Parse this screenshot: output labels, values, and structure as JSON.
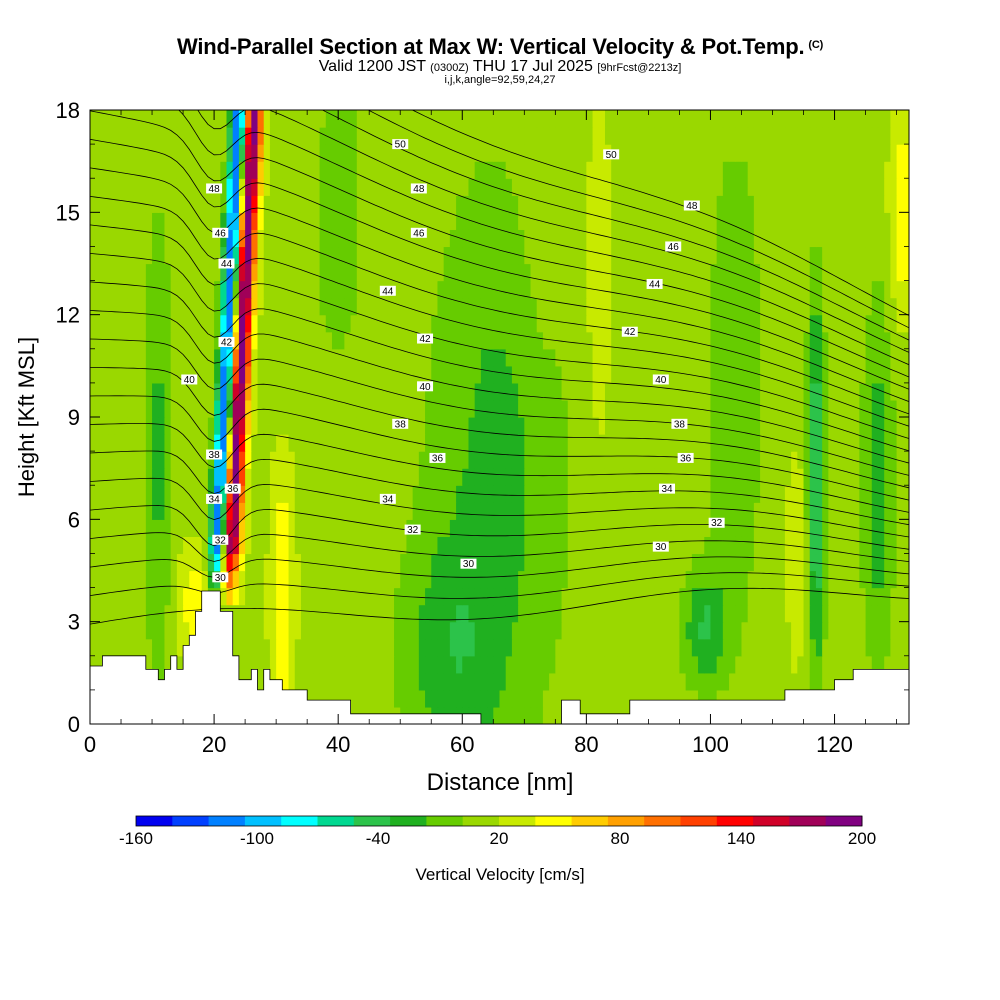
{
  "header": {
    "title": "Wind-Parallel Section at Max W: Vertical Velocity & Pot.Temp.",
    "copyright": "(C)",
    "valid_prefix": "Valid 1200 JST",
    "valid_utc": "(0300Z)",
    "valid_date": "THU 17 Jul 2025",
    "forecast": "[9hrFcst@2213z]",
    "params": "i,j,k,angle=92,59,24,27"
  },
  "chart_data": {
    "type": "heatmap",
    "xlabel": "Distance [nm]",
    "ylabel": "Height [Kft MSL]",
    "xlim": [
      0,
      132
    ],
    "ylim": [
      0,
      18
    ],
    "xticks": [
      0,
      20,
      40,
      60,
      80,
      100,
      120
    ],
    "yticks": [
      0,
      3,
      6,
      9,
      12,
      15,
      18
    ],
    "colorbar": {
      "label": "Vertical Velocity [cm/s]",
      "range": [
        -160,
        200
      ],
      "tick_labels": [
        "-160",
        "-100",
        "-40",
        "20",
        "80",
        "140",
        "200"
      ],
      "colors": [
        "#0000f0",
        "#0040ff",
        "#0080ff",
        "#00c0ff",
        "#00ffff",
        "#00d890",
        "#2cc34a",
        "#20b020",
        "#66cc00",
        "#9ad800",
        "#c8ea00",
        "#ffff00",
        "#ffcc00",
        "#ffa000",
        "#ff7000",
        "#ff4000",
        "#ff0000",
        "#d00028",
        "#a00058",
        "#800080"
      ]
    },
    "theta_contours_labeled": [
      30,
      32,
      34,
      36,
      38,
      40,
      42,
      44,
      46,
      48,
      50
    ],
    "theta_label_positions": [
      {
        "v": "30",
        "x": 61,
        "y": 4.7
      },
      {
        "v": "30",
        "x": 92,
        "y": 5.2
      },
      {
        "v": "30",
        "x": 21,
        "y": 4.3
      },
      {
        "v": "32",
        "x": 52,
        "y": 5.7
      },
      {
        "v": "32",
        "x": 101,
        "y": 5.9
      },
      {
        "v": "32",
        "x": 21,
        "y": 5.4
      },
      {
        "v": "34",
        "x": 48,
        "y": 6.6
      },
      {
        "v": "34",
        "x": 93,
        "y": 6.9
      },
      {
        "v": "34",
        "x": 20,
        "y": 6.6
      },
      {
        "v": "36",
        "x": 56,
        "y": 7.8
      },
      {
        "v": "36",
        "x": 96,
        "y": 7.8
      },
      {
        "v": "36",
        "x": 23,
        "y": 6.9
      },
      {
        "v": "38",
        "x": 50,
        "y": 8.8
      },
      {
        "v": "38",
        "x": 95,
        "y": 8.8
      },
      {
        "v": "38",
        "x": 20,
        "y": 7.9
      },
      {
        "v": "40",
        "x": 54,
        "y": 9.9
      },
      {
        "v": "40",
        "x": 92,
        "y": 10.1
      },
      {
        "v": "40",
        "x": 16,
        "y": 10.1
      },
      {
        "v": "42",
        "x": 54,
        "y": 11.3
      },
      {
        "v": "42",
        "x": 87,
        "y": 11.5
      },
      {
        "v": "42",
        "x": 22,
        "y": 11.2
      },
      {
        "v": "44",
        "x": 48,
        "y": 12.7
      },
      {
        "v": "44",
        "x": 91,
        "y": 12.9
      },
      {
        "v": "44",
        "x": 22,
        "y": 13.5
      },
      {
        "v": "46",
        "x": 53,
        "y": 14.4
      },
      {
        "v": "46",
        "x": 94,
        "y": 14.0
      },
      {
        "v": "46",
        "x": 21,
        "y": 14.4
      },
      {
        "v": "48",
        "x": 53,
        "y": 15.7
      },
      {
        "v": "48",
        "x": 97,
        "y": 15.2
      },
      {
        "v": "48",
        "x": 20,
        "y": 15.7
      },
      {
        "v": "50",
        "x": 50,
        "y": 17.0
      },
      {
        "v": "50",
        "x": 84,
        "y": 16.7
      }
    ],
    "terrain_profile_kft": [
      [
        0,
        1.7
      ],
      [
        2,
        1.7
      ],
      [
        2,
        2.0
      ],
      [
        9,
        2.0
      ],
      [
        9,
        1.6
      ],
      [
        11,
        1.6
      ],
      [
        11,
        1.3
      ],
      [
        12,
        1.3
      ],
      [
        12,
        1.6
      ],
      [
        13,
        1.6
      ],
      [
        13,
        2.0
      ],
      [
        14,
        2.0
      ],
      [
        14,
        1.6
      ],
      [
        15,
        1.6
      ],
      [
        15,
        2.3
      ],
      [
        16,
        2.3
      ],
      [
        16,
        2.6
      ],
      [
        17,
        2.6
      ],
      [
        17,
        3.3
      ],
      [
        18,
        3.3
      ],
      [
        18,
        3.9
      ],
      [
        21,
        3.9
      ],
      [
        21,
        3.3
      ],
      [
        23,
        3.3
      ],
      [
        23,
        2.0
      ],
      [
        24,
        2.0
      ],
      [
        24,
        1.3
      ],
      [
        26,
        1.3
      ],
      [
        26,
        1.6
      ],
      [
        27,
        1.6
      ],
      [
        27,
        1.0
      ],
      [
        28,
        1.0
      ],
      [
        28,
        1.6
      ],
      [
        29,
        1.6
      ],
      [
        29,
        1.3
      ],
      [
        31,
        1.3
      ],
      [
        31,
        1.0
      ],
      [
        35,
        1.0
      ],
      [
        35,
        0.7
      ],
      [
        42,
        0.7
      ],
      [
        42,
        0.3
      ],
      [
        63,
        0.3
      ],
      [
        63,
        0.0
      ],
      [
        76,
        0.0
      ],
      [
        76,
        0.7
      ],
      [
        79,
        0.7
      ],
      [
        79,
        0.3
      ],
      [
        87,
        0.3
      ],
      [
        87,
        0.7
      ],
      [
        112,
        0.7
      ],
      [
        112,
        1.0
      ],
      [
        120,
        1.0
      ],
      [
        120,
        1.3
      ],
      [
        123,
        1.3
      ],
      [
        123,
        1.6
      ],
      [
        132,
        1.6
      ]
    ]
  }
}
